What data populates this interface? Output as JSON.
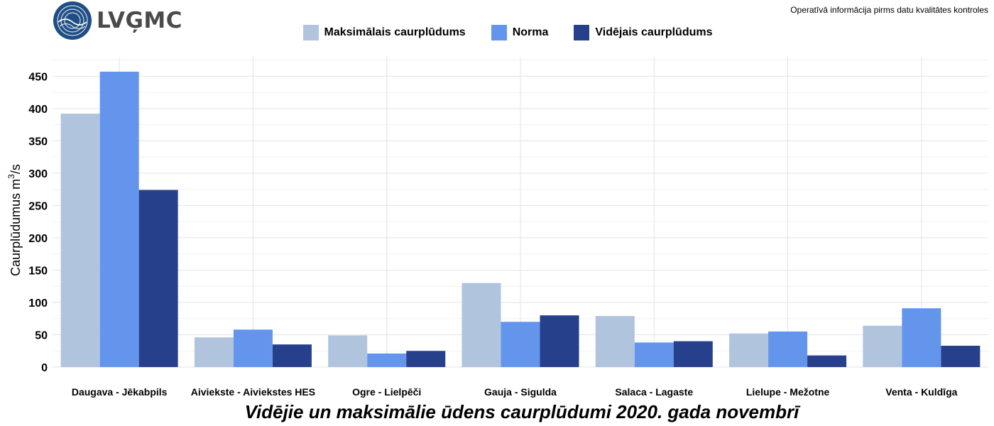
{
  "brand": {
    "logo_text": "LVĢMC"
  },
  "note": "Operatīvā informācija pirms datu kvalitātes kontroles",
  "colors": {
    "max": "#b0c4de",
    "norm": "#6495ed",
    "avg": "#27408b"
  },
  "chart_data": {
    "type": "bar",
    "title": "Vidējie un maksimālie ūdens caurplūdumi 2020. gada novembrī",
    "ylabel_main": "Caurplūdumus  m",
    "ylabel_sup": "3",
    "ylabel_tail": "/s",
    "xlabel": "",
    "ylim": [
      0,
      480
    ],
    "yticks": [
      0,
      50,
      100,
      150,
      200,
      250,
      300,
      350,
      400,
      450
    ],
    "categories": [
      "Daugava - Jēkabpils",
      "Aiviekste - Aiviekstes HES",
      "Ogre - Lielpēči",
      "Gauja - Sigulda",
      "Salaca - Lagaste",
      "Lielupe - Mežotne",
      "Venta - Kuldīga"
    ],
    "series": [
      {
        "name": "Maksimālais caurplūdums",
        "values": [
          392,
          46,
          49,
          130,
          79,
          52,
          64
        ]
      },
      {
        "name": "Norma",
        "values": [
          457,
          58,
          21,
          70,
          38,
          55,
          91
        ]
      },
      {
        "name": "Vidējais caurplūdums",
        "values": [
          274,
          35,
          25,
          80,
          40,
          18,
          33
        ]
      }
    ],
    "grid": true,
    "legend_position": "top"
  }
}
